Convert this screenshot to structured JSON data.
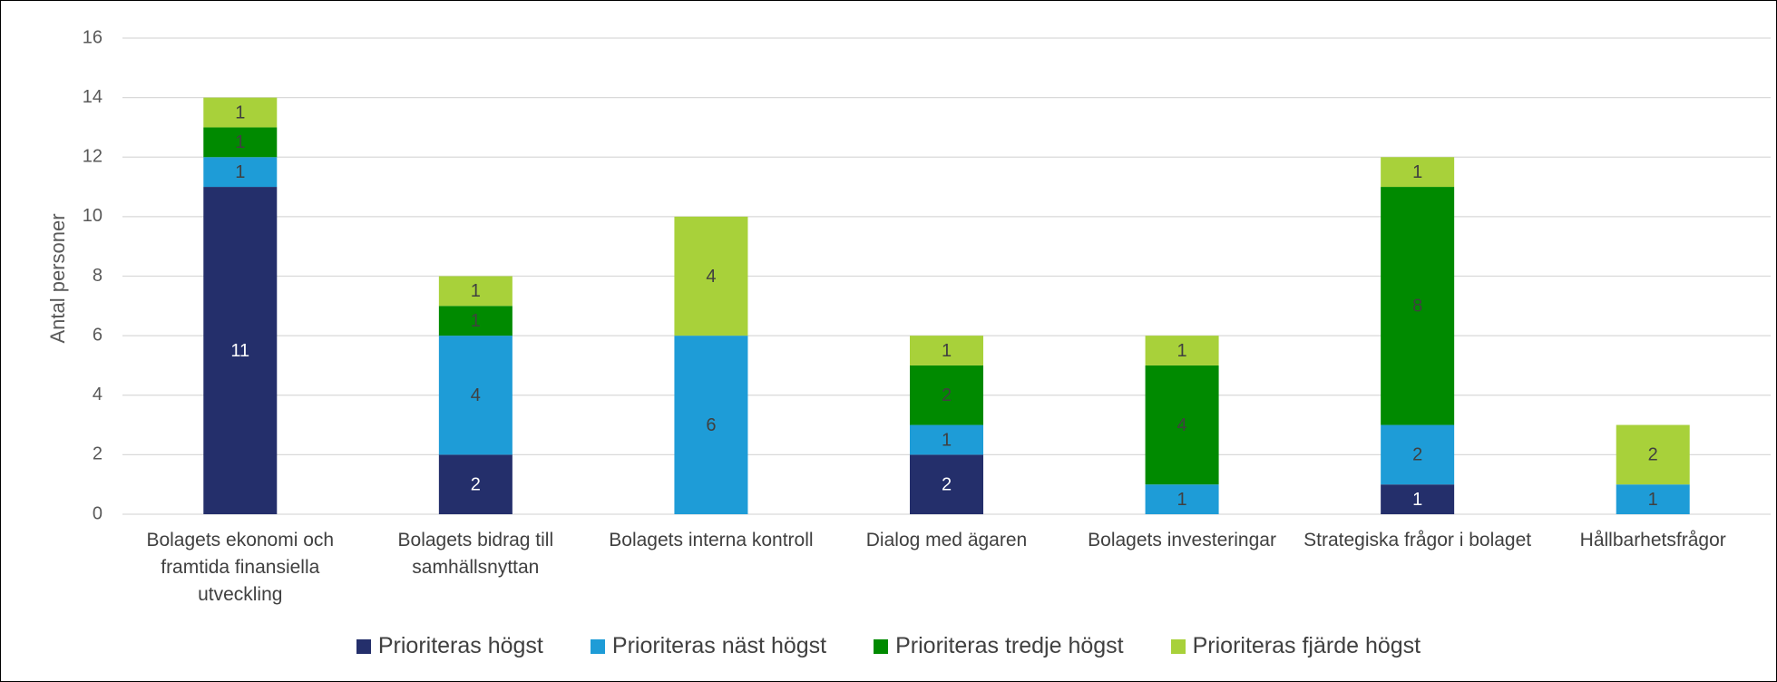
{
  "chart_data": {
    "type": "stacked_bar",
    "y_label": "Antal personer",
    "categories": [
      "Bolagets ekonomi och framtida finansiella utveckling",
      "Bolagets bidrag till samhällsnyttan",
      "Bolagets interna kontroll",
      "Dialog med ägaren",
      "Bolagets investeringar",
      "Strategiska frågor i bolaget",
      "Hållbarhetsfrågor"
    ],
    "series": [
      {
        "name": "Prioriteras högst",
        "color": "#242f6b",
        "label_color": "#ffffff",
        "values": [
          11,
          2,
          null,
          2,
          null,
          1,
          null
        ]
      },
      {
        "name": "Prioriteras näst högst",
        "color": "#1e9cd7",
        "label_color": "#404040",
        "values": [
          1,
          4,
          6,
          1,
          1,
          2,
          1
        ]
      },
      {
        "name": "Prioriteras tredje högst",
        "color": "#008a00",
        "label_color": "#404040",
        "values": [
          1,
          1,
          null,
          2,
          4,
          8,
          null
        ]
      },
      {
        "name": "Prioriteras fjärde högst",
        "color": "#a8d13a",
        "label_color": "#404040",
        "values": [
          1,
          1,
          4,
          1,
          1,
          1,
          2
        ]
      }
    ],
    "ylim": [
      0,
      16
    ],
    "yticks": [
      0,
      2,
      4,
      6,
      8,
      10,
      12,
      14,
      16
    ],
    "grid": true,
    "legend": "bottom"
  }
}
